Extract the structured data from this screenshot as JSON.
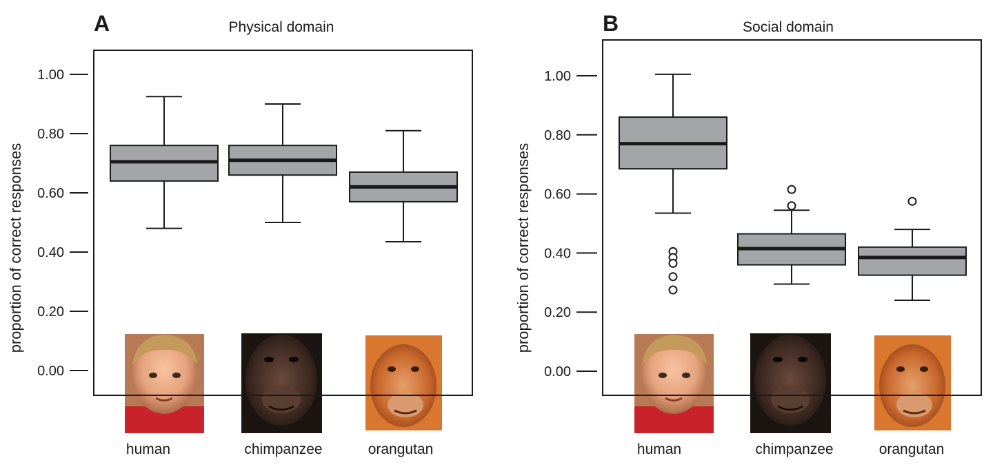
{
  "figure": {
    "colors": {
      "box_fill": "#a3a5a8",
      "median": "#1a1a1a",
      "stroke": "#1a1a1a",
      "human_photo": "#e6a37e",
      "chimpanzee_photo": "#3e2a22",
      "orangutan_photo": "#c8672c"
    }
  },
  "chart_data": [
    {
      "type": "box",
      "panel_label": "A",
      "title": "Physical domain",
      "ylabel": "proportion of correct responses",
      "xlabel": "",
      "ylim": [
        -0.08,
        1.08
      ],
      "yticks": [
        1.0,
        0.8,
        0.6,
        0.4,
        0.2,
        0.0
      ],
      "ytick_labels": [
        "1.00",
        "0.80",
        "0.60",
        "0.40",
        "0.20",
        "0.00"
      ],
      "grid": false,
      "categories": [
        "human",
        "chimpanzee",
        "orangutan"
      ],
      "category_icons": [
        "human-photo",
        "chimpanzee-photo",
        "orangutan-photo"
      ],
      "boxes": [
        {
          "category": "human",
          "whisker_low": 0.48,
          "q1": 0.64,
          "median": 0.705,
          "q3": 0.76,
          "whisker_high": 0.925,
          "outliers": []
        },
        {
          "category": "chimpanzee",
          "whisker_low": 0.5,
          "q1": 0.66,
          "median": 0.71,
          "q3": 0.76,
          "whisker_high": 0.9,
          "outliers": []
        },
        {
          "category": "orangutan",
          "whisker_low": 0.435,
          "q1": 0.57,
          "median": 0.62,
          "q3": 0.67,
          "whisker_high": 0.81,
          "outliers": []
        }
      ]
    },
    {
      "type": "box",
      "panel_label": "B",
      "title": "Social domain",
      "ylabel": "proportion of correct responses",
      "xlabel": "",
      "ylim": [
        -0.08,
        1.12
      ],
      "yticks": [
        1.0,
        0.8,
        0.6,
        0.4,
        0.2,
        0.0
      ],
      "ytick_labels": [
        "1.00",
        "0.80",
        "0.60",
        "0.40",
        "0.20",
        "0.00"
      ],
      "grid": false,
      "categories": [
        "human",
        "chimpanzee",
        "orangutan"
      ],
      "category_icons": [
        "human-photo",
        "chimpanzee-photo",
        "orangutan-photo"
      ],
      "boxes": [
        {
          "category": "human",
          "whisker_low": 0.535,
          "q1": 0.685,
          "median": 0.77,
          "q3": 0.86,
          "whisker_high": 1.005,
          "outliers": [
            0.405,
            0.385,
            0.365,
            0.32,
            0.275
          ]
        },
        {
          "category": "chimpanzee",
          "whisker_low": 0.295,
          "q1": 0.36,
          "median": 0.415,
          "q3": 0.465,
          "whisker_high": 0.545,
          "outliers": [
            0.615,
            0.56
          ]
        },
        {
          "category": "orangutan",
          "whisker_low": 0.24,
          "q1": 0.325,
          "median": 0.385,
          "q3": 0.42,
          "whisker_high": 0.48,
          "outliers": [
            0.575
          ]
        }
      ]
    }
  ]
}
